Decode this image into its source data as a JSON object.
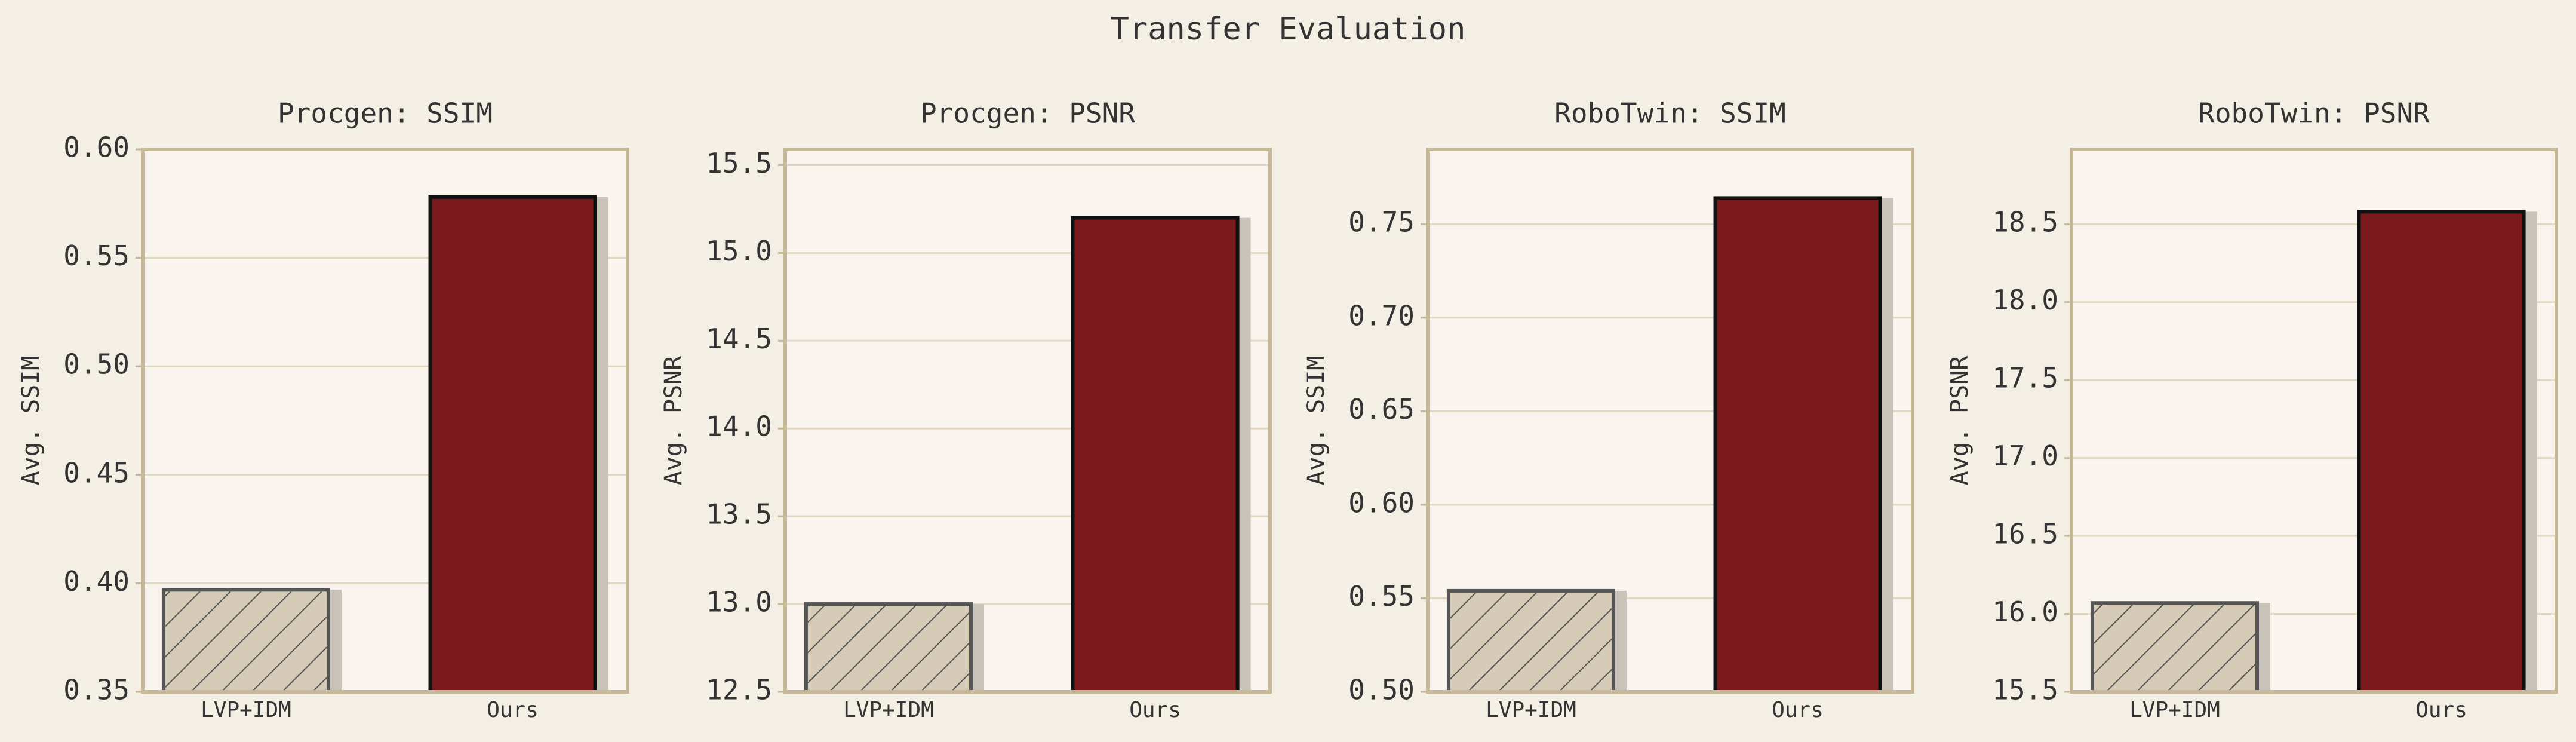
{
  "title": "Transfer Evaluation",
  "chart_data": [
    {
      "type": "bar",
      "title": "Procgen: SSIM",
      "ylabel": "Avg. SSIM",
      "categories": [
        "LVP+IDM",
        "Ours"
      ],
      "values": [
        0.397,
        0.578
      ],
      "colors": [
        "#d5cbb7",
        "#7a1a1c"
      ],
      "hatched": [
        true,
        false
      ],
      "ylim": [
        0.35,
        0.6
      ],
      "yticks": [
        0.35,
        {
          "value": 0.4,
          "label": "0.40"
        },
        0.45,
        {
          "value": 0.5,
          "label": "0.50"
        },
        0.55,
        {
          "value": 0.6,
          "label": "0.60"
        }
      ],
      "grid": true
    },
    {
      "type": "bar",
      "title": "Procgen: PSNR",
      "ylabel": "Avg. PSNR",
      "categories": [
        "LVP+IDM",
        "Ours"
      ],
      "values": [
        13.0,
        15.2
      ],
      "colors": [
        "#d5cbb7",
        "#7a1a1c"
      ],
      "hatched": [
        true,
        false
      ],
      "ylim": [
        12.5,
        15.59
      ],
      "yticks": [
        12.5,
        {
          "value": 13,
          "label": "13.0"
        },
        13.5,
        {
          "value": 14,
          "label": "14.0"
        },
        14.5,
        {
          "value": 15,
          "label": "15.0"
        },
        15.5
      ],
      "grid": true
    },
    {
      "type": "bar",
      "title": "RoboTwin: SSIM",
      "ylabel": "Avg. SSIM",
      "categories": [
        "LVP+IDM",
        "Ours"
      ],
      "values": [
        0.554,
        0.764
      ],
      "colors": [
        "#d5cbb7",
        "#7a1a1c"
      ],
      "hatched": [
        true,
        false
      ],
      "ylim": [
        0.5,
        0.79
      ],
      "yticks": [
        {
          "value": 0.5,
          "label": "0.50"
        },
        0.55,
        {
          "value": 0.6,
          "label": "0.60"
        },
        0.65,
        {
          "value": 0.7,
          "label": "0.70"
        },
        0.75
      ],
      "grid": true
    },
    {
      "type": "bar",
      "title": "RoboTwin: PSNR",
      "ylabel": "Avg. PSNR",
      "categories": [
        "LVP+IDM",
        "Ours"
      ],
      "values": [
        16.07,
        18.58
      ],
      "colors": [
        "#d5cbb7",
        "#7a1a1c"
      ],
      "hatched": [
        true,
        false
      ],
      "ylim": [
        15.5,
        18.98
      ],
      "yticks": [
        15.5,
        {
          "value": 16,
          "label": "16.0"
        },
        16.5,
        {
          "value": 17,
          "label": "17.0"
        },
        17.5,
        {
          "value": 18,
          "label": "18.0"
        },
        18.5
      ],
      "grid": true
    }
  ]
}
